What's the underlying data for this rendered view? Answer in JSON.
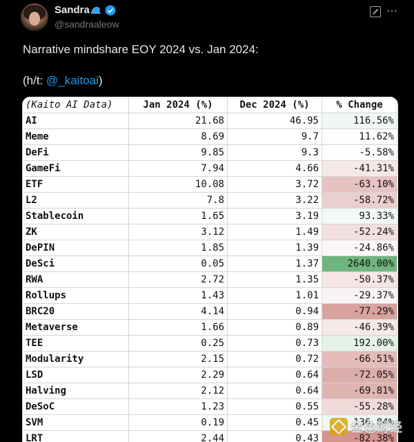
{
  "author": {
    "display_name": "Sandra",
    "handle": "@sandraaleow"
  },
  "tweet": {
    "text": "Narrative mindshare EOY 2024 vs. Jan 2024:",
    "hat_tip_prefix": "(h/t: ",
    "hat_tip_mention": "@_kaitoai",
    "hat_tip_suffix": ")"
  },
  "table": {
    "headers": [
      "(Kaito AI Data)",
      "Jan 2024 (%)",
      "Dec 2024 (%)",
      "% Change"
    ],
    "rows": [
      {
        "name": "AI",
        "jan": "21.68",
        "dec": "46.95",
        "change": "116.56%",
        "bg": "#f1f8f3"
      },
      {
        "name": "Meme",
        "jan": "8.69",
        "dec": "9.7",
        "change": "11.62%",
        "bg": "#fdfdfd"
      },
      {
        "name": "DeFi",
        "jan": "9.85",
        "dec": "9.3",
        "change": "-5.58%",
        "bg": "#fffdfd"
      },
      {
        "name": "GameFi",
        "jan": "7.94",
        "dec": "4.66",
        "change": "-41.31%",
        "bg": "#f7e8e8"
      },
      {
        "name": "ETF",
        "jan": "10.08",
        "dec": "3.72",
        "change": "-63.10%",
        "bg": "#e6c2c0"
      },
      {
        "name": "L2",
        "jan": "7.8",
        "dec": "3.22",
        "change": "-58.72%",
        "bg": "#ebcfcd"
      },
      {
        "name": "Stablecoin",
        "jan": "1.65",
        "dec": "3.19",
        "change": "93.33%",
        "bg": "#f3f9f5"
      },
      {
        "name": "ZK",
        "jan": "3.12",
        "dec": "1.49",
        "change": "-52.24%",
        "bg": "#f2e0df"
      },
      {
        "name": "DePIN",
        "jan": "1.85",
        "dec": "1.39",
        "change": "-24.86%",
        "bg": "#fcf6f6"
      },
      {
        "name": "DeSci",
        "jan": "0.05",
        "dec": "1.37",
        "change": "2640.00%",
        "bg": "#6fb57e"
      },
      {
        "name": "RWA",
        "jan": "2.72",
        "dec": "1.35",
        "change": "-50.37%",
        "bg": "#f5e6e5"
      },
      {
        "name": "Rollups",
        "jan": "1.43",
        "dec": "1.01",
        "change": "-29.37%",
        "bg": "#fbf3f3"
      },
      {
        "name": "BRC20",
        "jan": "4.14",
        "dec": "0.94",
        "change": "-77.29%",
        "bg": "#d9a29f"
      },
      {
        "name": "Metaverse",
        "jan": "1.66",
        "dec": "0.89",
        "change": "-46.39%",
        "bg": "#f6e9e9"
      },
      {
        "name": "TEE",
        "jan": "0.25",
        "dec": "0.73",
        "change": "192.00%",
        "bg": "#e4f2e8"
      },
      {
        "name": "Modularity",
        "jan": "2.15",
        "dec": "0.72",
        "change": "-66.51%",
        "bg": "#e4bcba"
      },
      {
        "name": "LSD",
        "jan": "2.29",
        "dec": "0.64",
        "change": "-72.05%",
        "bg": "#dcaeab"
      },
      {
        "name": "Halving",
        "jan": "2.12",
        "dec": "0.64",
        "change": "-69.81%",
        "bg": "#e0b4b1"
      },
      {
        "name": "DeSoC",
        "jan": "1.23",
        "dec": "0.55",
        "change": "-55.28%",
        "bg": "#f0dad9"
      },
      {
        "name": "SVM",
        "jan": "0.19",
        "dec": "0.45",
        "change": "136.84%",
        "bg": "#eef7f1"
      },
      {
        "name": "LRT",
        "jan": "2.44",
        "dec": "0.43",
        "change": "-82.38%",
        "bg": "#d4958f"
      }
    ]
  },
  "watermark": {
    "text": "金色财经"
  }
}
